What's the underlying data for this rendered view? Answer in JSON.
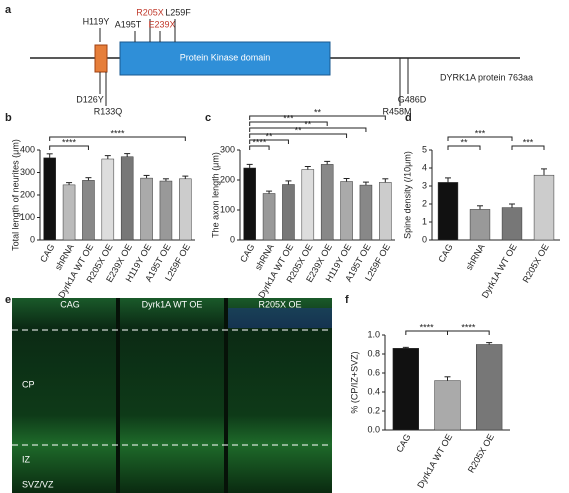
{
  "panel_labels": [
    "a",
    "b",
    "c",
    "d",
    "e",
    "f"
  ],
  "protein_diagram": {
    "domain": "Protein Kinase domain",
    "protein": "DYRK1A protein 763aa",
    "mutations_top": [
      {
        "label": "H119Y",
        "color": "#222"
      },
      {
        "label": "A195T",
        "color": "#222"
      },
      {
        "label": "R205X",
        "color": "#c0392b"
      },
      {
        "label": "E239X",
        "color": "#c0392b"
      },
      {
        "label": "L259F",
        "color": "#222"
      }
    ],
    "mutations_bottom": [
      "D126Y",
      "R133Q",
      "R458M",
      "G486D"
    ]
  },
  "micrographs": {
    "titles": [
      "CAG",
      "Dyrk1A WT OE",
      "R205X OE"
    ],
    "regions": [
      "CP",
      "IZ",
      "SVZ/VZ"
    ]
  },
  "chart_data": [
    {
      "type": "bar",
      "ylabel": "Total length of neurites (μm)",
      "categories": [
        "CAG",
        "shRNA",
        "Dyrk1A WT OE",
        "R205X OE",
        "E239X OE",
        "H119Y OE",
        "A195T OE",
        "L259F OE"
      ],
      "values": [
        365,
        245,
        265,
        360,
        370,
        275,
        262,
        272
      ],
      "errors": [
        18,
        10,
        12,
        15,
        14,
        12,
        10,
        12
      ],
      "colors": [
        "#111",
        "#bbb",
        "#888",
        "#ddd",
        "#777",
        "#aaa",
        "#999",
        "#ccc"
      ],
      "ylim": [
        0,
        400
      ],
      "yticks": [
        0,
        100,
        200,
        300,
        400
      ],
      "annotations": [
        "****",
        "****"
      ]
    },
    {
      "type": "bar",
      "ylabel": "The axon length (μm)",
      "categories": [
        "CAG",
        "shRNA",
        "Dyrk1A WT OE",
        "R205X OE",
        "E239X OE",
        "H119Y OE",
        "A195T OE",
        "L259F OE"
      ],
      "values": [
        240,
        155,
        185,
        235,
        252,
        195,
        183,
        192
      ],
      "errors": [
        12,
        8,
        12,
        10,
        10,
        10,
        10,
        12
      ],
      "colors": [
        "#111",
        "#999",
        "#777",
        "#ddd",
        "#888",
        "#aaa",
        "#888",
        "#ccc"
      ],
      "ylim": [
        0,
        300
      ],
      "yticks": [
        0,
        100,
        200,
        300
      ],
      "annotations": [
        "****",
        "**",
        "**",
        "**",
        "***",
        "**"
      ]
    },
    {
      "type": "bar",
      "ylabel": "Spine density (/10μm)",
      "categories": [
        "CAG",
        "shRNA",
        "Dyrk1A WT OE",
        "R205X OE"
      ],
      "values": [
        3.2,
        1.7,
        1.8,
        3.6
      ],
      "errors": [
        0.25,
        0.2,
        0.2,
        0.35
      ],
      "colors": [
        "#111",
        "#999",
        "#777",
        "#ccc"
      ],
      "ylim": [
        0,
        5
      ],
      "yticks": [
        0,
        1,
        2,
        3,
        4,
        5
      ],
      "annotations": [
        "**",
        "***",
        "***"
      ]
    },
    {
      "type": "bar",
      "ylabel": "% (CP/IZ+SVZ)",
      "categories": [
        "CAG",
        "Dyrk1A WT OE",
        "R205X OE"
      ],
      "values": [
        0.86,
        0.52,
        0.9
      ],
      "errors": [
        0.01,
        0.04,
        0.02
      ],
      "colors": [
        "#111",
        "#aaa",
        "#777"
      ],
      "ylim": [
        0,
        1
      ],
      "yticks": [
        {
          "value": 0,
          "label": "0.0"
        },
        {
          "value": 0.2,
          "label": "0.2"
        },
        {
          "value": 0.4,
          "label": "0.4"
        },
        {
          "value": 0.6,
          "label": "0.6"
        },
        {
          "value": 0.8,
          "label": "0.8"
        },
        {
          "value": 1,
          "label": "1.0"
        }
      ],
      "annotations": [
        "****",
        "****"
      ]
    }
  ]
}
